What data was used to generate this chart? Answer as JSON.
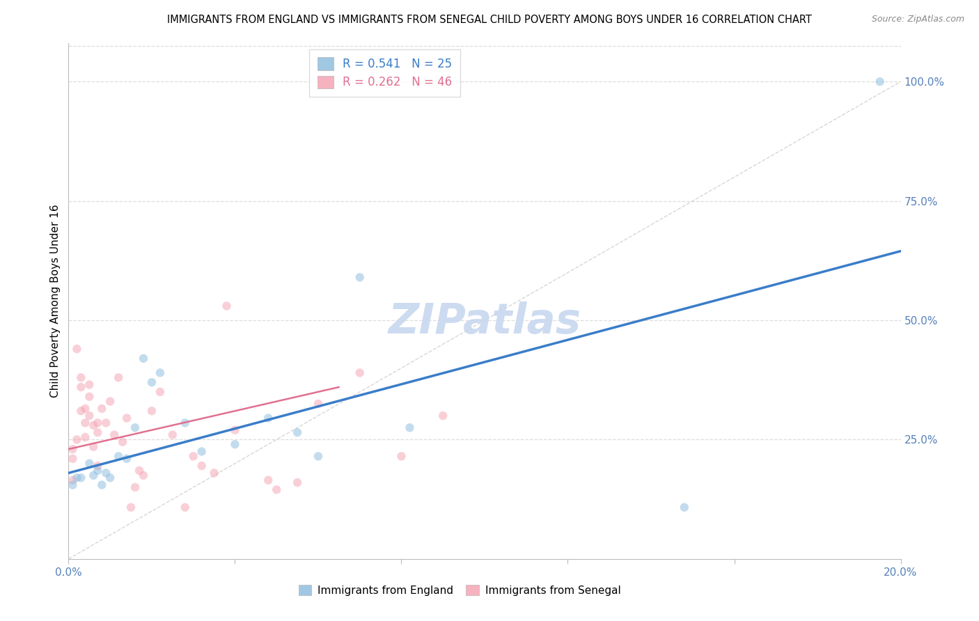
{
  "title": "IMMIGRANTS FROM ENGLAND VS IMMIGRANTS FROM SENEGAL CHILD POVERTY AMONG BOYS UNDER 16 CORRELATION CHART",
  "source": "Source: ZipAtlas.com",
  "ylabel": "Child Poverty Among Boys Under 16",
  "xlim": [
    0.0,
    0.2
  ],
  "ylim": [
    0.0,
    1.08
  ],
  "ytick_positions": [
    0.0,
    0.25,
    0.5,
    0.75,
    1.0
  ],
  "ytick_labels": [
    "",
    "25.0%",
    "50.0%",
    "75.0%",
    "100.0%"
  ],
  "xtick_positions": [
    0.0,
    0.04,
    0.08,
    0.12,
    0.16,
    0.2
  ],
  "xtick_labels": [
    "0.0%",
    "",
    "",
    "",
    "",
    "20.0%"
  ],
  "england_color": "#88bbdd",
  "senegal_color": "#f4a0b0",
  "england_R": 0.541,
  "england_N": 25,
  "senegal_R": 0.262,
  "senegal_N": 46,
  "england_x": [
    0.001,
    0.002,
    0.003,
    0.005,
    0.006,
    0.007,
    0.008,
    0.009,
    0.01,
    0.012,
    0.014,
    0.016,
    0.018,
    0.02,
    0.022,
    0.028,
    0.032,
    0.04,
    0.048,
    0.055,
    0.06,
    0.07,
    0.082,
    0.148,
    0.195
  ],
  "england_y": [
    0.155,
    0.17,
    0.17,
    0.2,
    0.175,
    0.185,
    0.155,
    0.18,
    0.17,
    0.215,
    0.21,
    0.275,
    0.42,
    0.37,
    0.39,
    0.285,
    0.225,
    0.24,
    0.295,
    0.265,
    0.215,
    0.59,
    0.275,
    0.108,
    1.0
  ],
  "senegal_x": [
    0.001,
    0.001,
    0.001,
    0.002,
    0.002,
    0.003,
    0.003,
    0.003,
    0.004,
    0.004,
    0.004,
    0.005,
    0.005,
    0.005,
    0.006,
    0.006,
    0.007,
    0.007,
    0.007,
    0.008,
    0.009,
    0.01,
    0.011,
    0.012,
    0.013,
    0.014,
    0.015,
    0.016,
    0.017,
    0.018,
    0.02,
    0.022,
    0.025,
    0.028,
    0.03,
    0.032,
    0.035,
    0.038,
    0.04,
    0.048,
    0.05,
    0.055,
    0.06,
    0.07,
    0.08,
    0.09
  ],
  "senegal_y": [
    0.21,
    0.23,
    0.165,
    0.44,
    0.25,
    0.38,
    0.36,
    0.31,
    0.315,
    0.285,
    0.255,
    0.365,
    0.34,
    0.3,
    0.28,
    0.235,
    0.285,
    0.265,
    0.195,
    0.315,
    0.285,
    0.33,
    0.26,
    0.38,
    0.245,
    0.295,
    0.108,
    0.15,
    0.185,
    0.175,
    0.31,
    0.35,
    0.26,
    0.108,
    0.215,
    0.195,
    0.18,
    0.53,
    0.27,
    0.165,
    0.145,
    0.16,
    0.325,
    0.39,
    0.215,
    0.3
  ],
  "england_trend_x": [
    0.0,
    0.2
  ],
  "england_trend_y": [
    0.18,
    0.645
  ],
  "senegal_trend_x": [
    0.0,
    0.065
  ],
  "senegal_trend_y": [
    0.23,
    0.36
  ],
  "ref_line_x": [
    0.0,
    0.2
  ],
  "ref_line_y": [
    0.0,
    1.0
  ],
  "england_trend_color": "#3a7dc9",
  "senegal_trend_color": "#e07090",
  "ref_line_color": "#cccccc",
  "grid_color": "#dddddd",
  "tick_label_color": "#5580bb",
  "bg_color": "#ffffff",
  "watermark_color": "#c8d8f0",
  "title_fontsize": 10.5,
  "source_fontsize": 9,
  "tick_fontsize": 11,
  "label_fontsize": 11,
  "legend_fontsize": 12,
  "marker_size": 80,
  "marker_alpha": 0.5
}
